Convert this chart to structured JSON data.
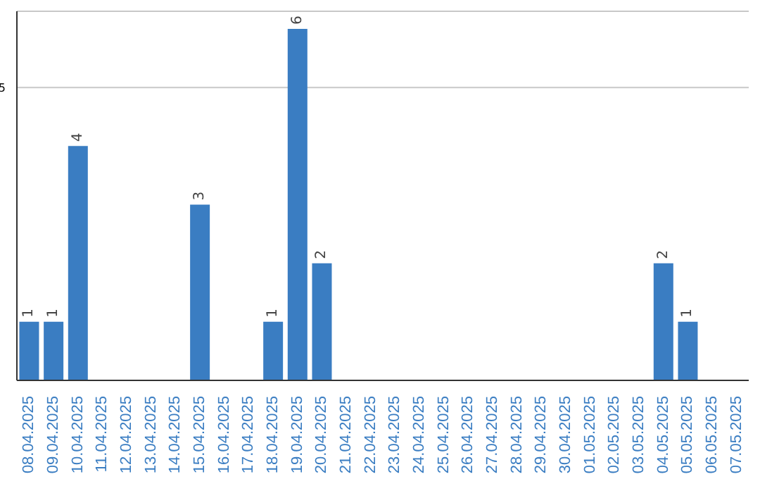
{
  "chart_data": {
    "type": "bar",
    "categories": [
      "08.04.2025",
      "09.04.2025",
      "10.04.2025",
      "11.04.2025",
      "12.04.2025",
      "13.04.2025",
      "14.04.2025",
      "15.04.2025",
      "16.04.2025",
      "17.04.2025",
      "18.04.2025",
      "19.04.2025",
      "20.04.2025",
      "21.04.2025",
      "22.04.2025",
      "23.04.2025",
      "24.04.2025",
      "25.04.2025",
      "26.04.2025",
      "27.04.2025",
      "28.04.2025",
      "29.04.2025",
      "30.04.2025",
      "01.05.2025",
      "02.05.2025",
      "03.05.2025",
      "04.05.2025",
      "05.05.2025",
      "06.05.2025",
      "07.05.2025"
    ],
    "values": [
      1,
      1,
      4,
      0,
      0,
      0,
      0,
      3,
      0,
      0,
      1,
      6,
      2,
      0,
      0,
      0,
      0,
      0,
      0,
      0,
      0,
      0,
      0,
      0,
      0,
      0,
      2,
      1,
      0,
      0
    ],
    "value_labels": [
      "1",
      "1",
      "4",
      null,
      null,
      null,
      null,
      "3",
      null,
      null,
      "1",
      "6",
      "2",
      null,
      null,
      null,
      null,
      null,
      null,
      null,
      null,
      null,
      null,
      null,
      null,
      null,
      "2",
      "1",
      null,
      null
    ],
    "color": "#3a7dc2",
    "ylim": [
      0,
      6.3
    ],
    "yticks": [
      5
    ],
    "grid": "y"
  }
}
